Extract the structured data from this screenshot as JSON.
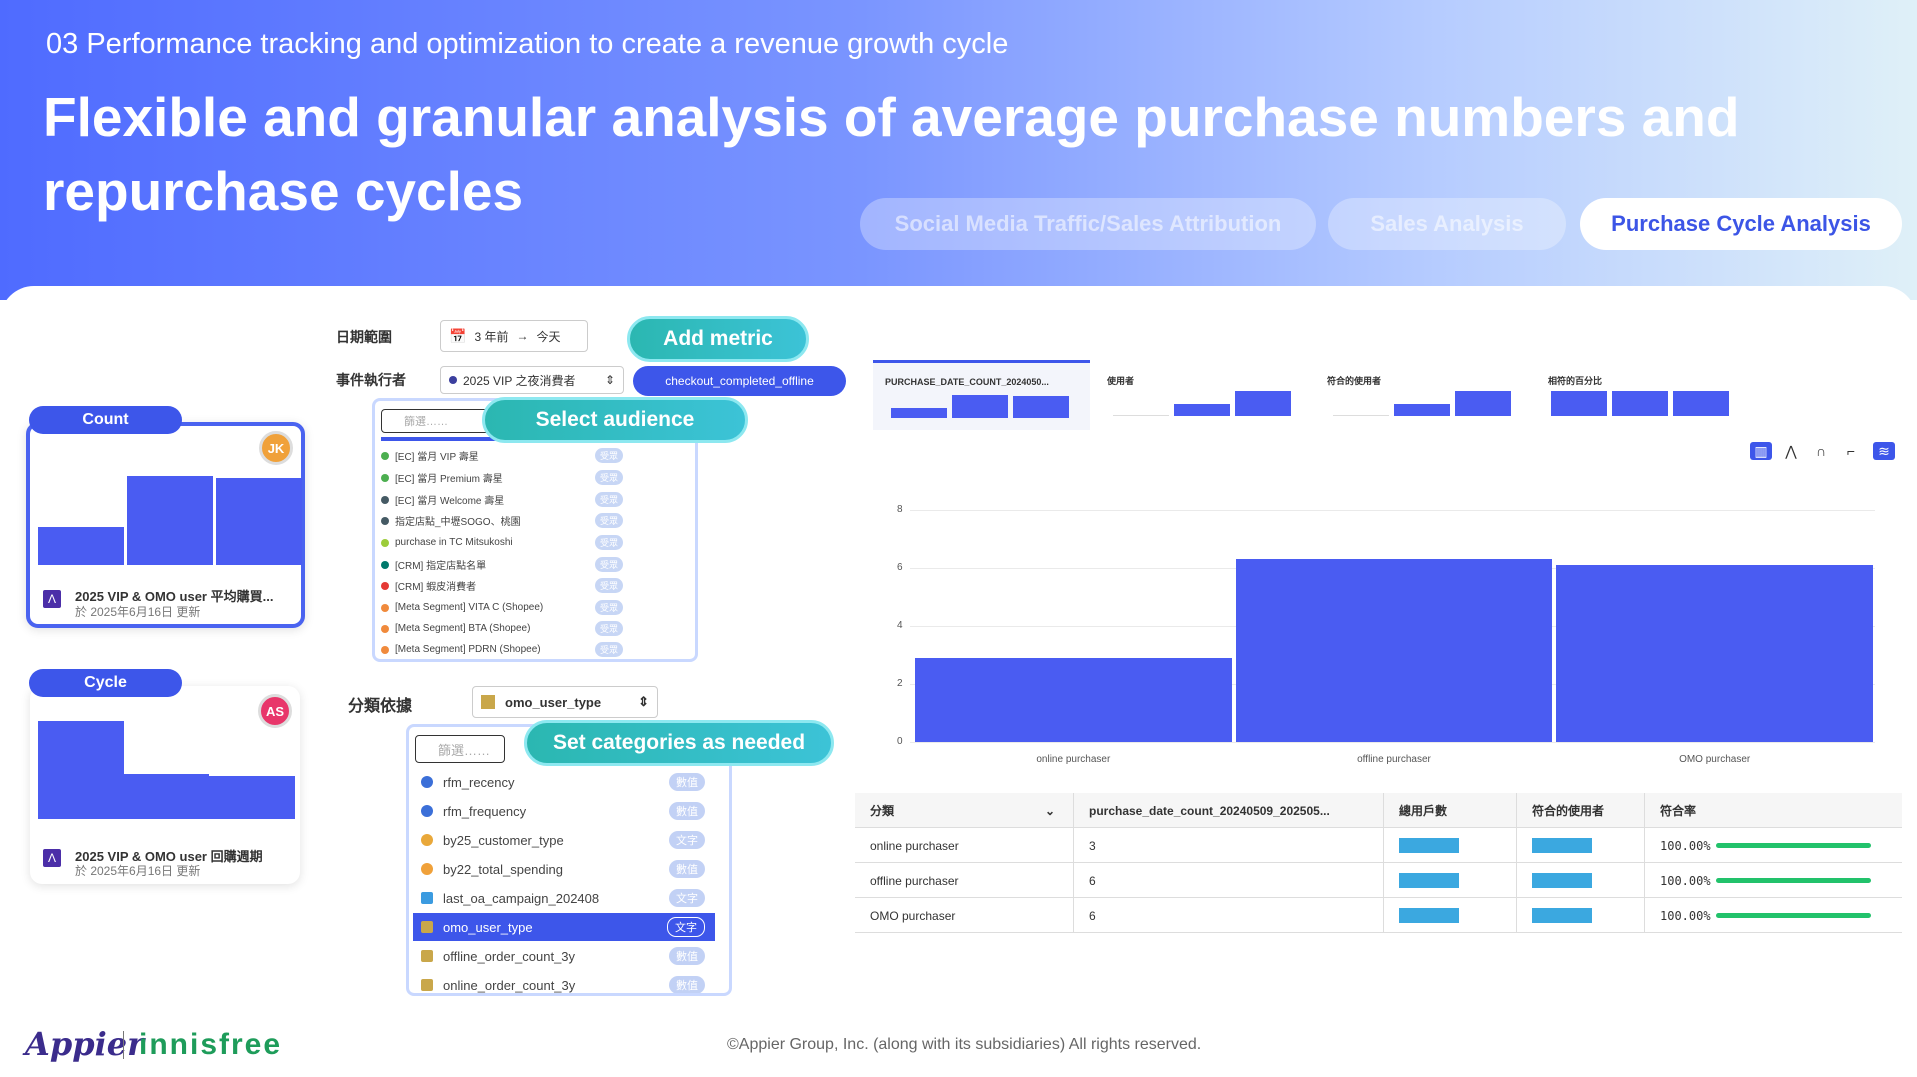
{
  "header": {
    "subtitle": "03 Performance tracking and optimization to create a revenue growth cycle",
    "title": "Flexible and granular analysis of average purchase numbers and repurchase cycles",
    "tabs": [
      {
        "label": "Social Media Traffic/Sales Attribution",
        "active": false
      },
      {
        "label": "Sales Analysis",
        "active": false
      },
      {
        "label": "Purchase Cycle Analysis",
        "active": true
      }
    ]
  },
  "cards": [
    {
      "tag": "Count",
      "avatar": "JK",
      "avatar_color": "#f0a13a",
      "title": "2025 VIP & OMO user 平均購買...",
      "updated": "於 2025年6月16日 更新",
      "bars": [
        0.4,
        0.85,
        0.82
      ]
    },
    {
      "tag": "Cycle",
      "avatar": "AS",
      "avatar_color": "#e8366a",
      "title": "2025 VIP & OMO user 回購週期",
      "updated": "於 2025年6月16日 更新",
      "bars": [
        0.9,
        0.42,
        0.4
      ]
    }
  ],
  "controls": {
    "date_range_label": "日期範圍",
    "date_from": "3 年前",
    "date_arrow": "→",
    "date_to": "今天",
    "actor_label": "事件執行者",
    "actor_value": "2025 VIP 之夜消費者",
    "metric_value": "checkout_completed_offline",
    "add_metric": "Add metric",
    "select_audience": "Select audience",
    "set_categories": "Set categories as needed",
    "audience_search_placeholder": "篩選……",
    "audiences": [
      {
        "name": "[EC] 當月 VIP 壽星",
        "color": "#4caf50",
        "badge": "受眾"
      },
      {
        "name": "[EC] 當月 Premium 壽星",
        "color": "#4caf50",
        "badge": "受眾"
      },
      {
        "name": "[EC] 當月 Welcome 壽星",
        "color": "#455a64",
        "badge": "受眾"
      },
      {
        "name": "指定店點_中壢SOGO、桃園",
        "color": "#455a64",
        "badge": "受眾"
      },
      {
        "name": "purchase in TC Mitsukoshi",
        "color": "#9ccc3a",
        "badge": "受眾"
      },
      {
        "name": "[CRM] 指定店點名單",
        "color": "#00796b",
        "badge": "受眾"
      },
      {
        "name": "[CRM] 蝦皮消費者",
        "color": "#e53935",
        "badge": "受眾"
      },
      {
        "name": "[Meta Segment] VITA C (Shopee)",
        "color": "#f08a3c",
        "badge": "受眾"
      },
      {
        "name": "[Meta Segment] BTA (Shopee)",
        "color": "#f08a3c",
        "badge": "受眾"
      },
      {
        "name": "[Meta Segment] PDRN (Shopee)",
        "color": "#f08a3c",
        "badge": "受眾"
      }
    ],
    "category_label": "分類依據",
    "category_value": "omo_user_type",
    "category_search_placeholder": "篩選……",
    "categories": [
      {
        "name": "rfm_recency",
        "badge": "數值",
        "icon_color": "#3b6fd8"
      },
      {
        "name": "rfm_frequency",
        "badge": "數值",
        "icon_color": "#3b6fd8"
      },
      {
        "name": "by25_customer_type",
        "badge": "文字",
        "icon_color": "#e9a83a"
      },
      {
        "name": "by22_total_spending",
        "badge": "數值",
        "icon_color": "#f0a13a"
      },
      {
        "name": "last_oa_campaign_202408",
        "badge": "文字",
        "icon_color": "#3b9be0"
      },
      {
        "name": "omo_user_type",
        "badge": "文字",
        "icon_color": "#c9a74a",
        "selected": true
      },
      {
        "name": "offline_order_count_3y",
        "badge": "數值",
        "icon_color": "#c9a74a"
      },
      {
        "name": "online_order_count_3y",
        "badge": "數值",
        "icon_color": "#c9a74a"
      }
    ]
  },
  "metrics": [
    {
      "label": "PURCHASE_DATE_COUNT_2024050...",
      "bars": [
        0.35,
        0.85,
        0.82
      ]
    },
    {
      "label": "使用者",
      "bars": [
        0.05,
        0.45,
        0.85
      ]
    },
    {
      "label": "符合的使用者",
      "bars": [
        0.05,
        0.45,
        0.85
      ]
    },
    {
      "label": "相符的百分比",
      "bars": [
        0.85,
        0.85,
        0.85
      ]
    }
  ],
  "toolbar_icons": [
    "bar-chart-icon",
    "line-chart-icon",
    "curve-chart-icon",
    "step-chart-icon",
    "stack-icon"
  ],
  "chart_data": {
    "type": "bar",
    "categories": [
      "online purchaser",
      "offline purchaser",
      "OMO purchaser"
    ],
    "values": [
      2.9,
      6.3,
      6.1
    ],
    "ylim": [
      0,
      8
    ],
    "yticks": [
      "0",
      "2",
      "4",
      "6",
      "8"
    ],
    "grid": true
  },
  "table": {
    "headers": [
      "分類",
      "purchase_date_count_20240509_202505...",
      "總用戶數",
      "符合的使用者",
      "符合率"
    ],
    "rows": [
      {
        "category": "online purchaser",
        "count": "3",
        "rate": "100.00%"
      },
      {
        "category": "offline purchaser",
        "count": "6",
        "rate": "100.00%"
      },
      {
        "category": "OMO purchaser",
        "count": "6",
        "rate": "100.00%"
      }
    ]
  },
  "footer": {
    "logo": "Appier",
    "brand": "innisfree",
    "copyright": "©Appier Group, Inc. (along with its subsidiaries) All rights reserved."
  }
}
